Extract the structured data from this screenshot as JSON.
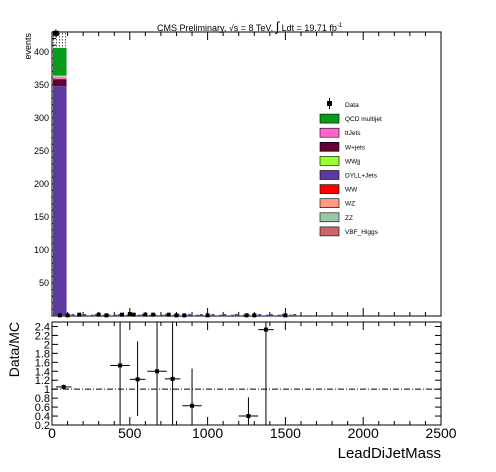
{
  "header": {
    "title_prefix": "CMS Preliminary, ",
    "sqrt_s": "√s = 8 TeV, ",
    "lumi_integral": "∫",
    "lumi_text": " Ldt = 19.71 fb",
    "lumi_sup": "-1"
  },
  "colors": {
    "qcd": "#089a1a",
    "ttjets": "#ff66cc",
    "wjets": "#660033",
    "wwjj": "#99ff33",
    "dyll": "#5c3aa0",
    "ww": "#ff0000",
    "wz": "#ff9980",
    "zz": "#99c8a8",
    "vbf": "#cc6666"
  },
  "chart_data": [
    {
      "type": "bar",
      "subtype": "stacked-histogram",
      "xlim": [
        0,
        2500
      ],
      "ylim": [
        0,
        430
      ],
      "ylabel": "events",
      "y_ticks": [
        50,
        100,
        150,
        200,
        250,
        300,
        350,
        400
      ],
      "bin_width": 50,
      "data_point": {
        "x": 25,
        "y": 428
      },
      "stack_first_bin": [
        {
          "key": "dyll",
          "value": 348
        },
        {
          "key": "wjets",
          "value": 10
        },
        {
          "key": "ww",
          "value": 1
        },
        {
          "key": "ttjets",
          "value": 2
        },
        {
          "key": "wz",
          "value": 1
        },
        {
          "key": "zz",
          "value": 1
        },
        {
          "key": "wwjj",
          "value": 1
        },
        {
          "key": "qcd",
          "value": 42
        }
      ],
      "uncertainty_band": [
        408,
        428
      ],
      "small_data_points": [
        {
          "x": 50,
          "y": 1
        },
        {
          "x": 100,
          "y": 1
        },
        {
          "x": 175,
          "y": 2
        },
        {
          "x": 300,
          "y": 2
        },
        {
          "x": 350,
          "y": 1
        },
        {
          "x": 450,
          "y": 2
        },
        {
          "x": 500,
          "y": 3
        },
        {
          "x": 525,
          "y": 2
        },
        {
          "x": 600,
          "y": 2
        },
        {
          "x": 650,
          "y": 2
        },
        {
          "x": 750,
          "y": 2
        },
        {
          "x": 800,
          "y": 1
        },
        {
          "x": 850,
          "y": 1
        },
        {
          "x": 1000,
          "y": 1
        },
        {
          "x": 1250,
          "y": 1
        },
        {
          "x": 1300,
          "y": 1
        },
        {
          "x": 1500,
          "y": 1
        }
      ],
      "legend": {
        "placement": "right",
        "entries": [
          {
            "label": "Data",
            "key": "data"
          },
          {
            "label": "QCD multijet",
            "key": "qcd"
          },
          {
            "label": "ttJets",
            "key": "ttjets"
          },
          {
            "label": "W+jets",
            "key": "wjets"
          },
          {
            "label": "WWjj",
            "key": "wwjj"
          },
          {
            "label": "DYLL+Jets",
            "key": "dyll"
          },
          {
            "label": "WW",
            "key": "ww"
          },
          {
            "label": "WZ",
            "key": "wz"
          },
          {
            "label": "ZZ",
            "key": "zz"
          },
          {
            "label": "VBF_Higgs",
            "key": "vbf"
          }
        ]
      }
    },
    {
      "type": "scatter",
      "subtype": "ratio",
      "xlim": [
        0,
        2500
      ],
      "ylim": [
        0.2,
        2.5
      ],
      "xlabel": "LeadDiJetMass",
      "ylabel": "Data/MC",
      "x_ticks": [
        0,
        500,
        1000,
        1500,
        2000,
        2500
      ],
      "y_ticks": [
        0.2,
        0.4,
        0.6,
        0.8,
        1,
        1.2,
        1.4,
        1.6,
        1.8,
        2,
        2.2,
        2.4
      ],
      "reference_line": 1.0,
      "points": [
        {
          "x": 75,
          "y": 1.05,
          "xerr": 50,
          "ylo": 1.0,
          "yhi": 1.1
        },
        {
          "x": 437.5,
          "y": 1.53,
          "xerr": 62.5,
          "ylo": 0.2,
          "yhi": 2.5
        },
        {
          "x": 550,
          "y": 1.22,
          "xerr": 50,
          "ylo": 0.4,
          "yhi": 2.07
        },
        {
          "x": 675,
          "y": 1.4,
          "xerr": 62.5,
          "ylo": 0.2,
          "yhi": 2.5
        },
        {
          "x": 775,
          "y": 1.23,
          "xerr": 50,
          "ylo": 0.2,
          "yhi": 2.5
        },
        {
          "x": 900,
          "y": 0.63,
          "xerr": 62.5,
          "ylo": 0.2,
          "yhi": 1.46
        },
        {
          "x": 1262.5,
          "y": 0.4,
          "xerr": 62.5,
          "ylo": 0.2,
          "yhi": 0.82
        },
        {
          "x": 1375,
          "y": 2.33,
          "xerr": 50,
          "ylo": 0.2,
          "yhi": 2.5
        }
      ]
    }
  ]
}
